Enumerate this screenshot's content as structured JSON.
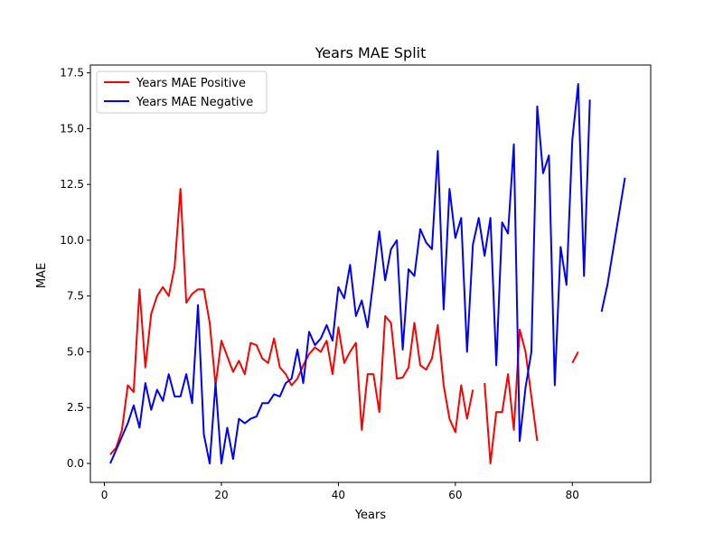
{
  "chart_data": {
    "type": "line",
    "title": "Years MAE Split",
    "xlabel": "Years",
    "ylabel": "MAE",
    "xlim": [
      -2.4,
      93.4
    ],
    "ylim": [
      -0.85,
      17.85
    ],
    "xticks": [
      0,
      20,
      40,
      60,
      80
    ],
    "xtick_labels": [
      "0",
      "20",
      "40",
      "60",
      "80"
    ],
    "yticks": [
      0,
      2.5,
      5,
      7.5,
      10,
      12.5,
      15,
      17.5
    ],
    "ytick_labels": [
      "0.0",
      "2.5",
      "5.0",
      "7.5",
      "10.0",
      "12.5",
      "15.0",
      "17.5"
    ],
    "grid": false,
    "legend_position": "upper left",
    "series": [
      {
        "name": "Years MAE Positive",
        "color": "#ff0000",
        "points": [
          [
            1,
            0.4
          ],
          [
            2,
            0.7
          ],
          [
            3,
            1.5
          ],
          [
            4,
            3.5
          ],
          [
            5,
            3.2
          ],
          [
            6,
            7.8
          ],
          [
            7,
            4.3
          ],
          [
            8,
            6.7
          ],
          [
            9,
            7.5
          ],
          [
            10,
            7.9
          ],
          [
            11,
            7.5
          ],
          [
            12,
            8.8
          ],
          [
            13,
            12.3
          ],
          [
            14,
            7.2
          ],
          [
            15,
            7.6
          ],
          [
            16,
            7.8
          ],
          [
            17,
            7.8
          ],
          [
            18,
            6.3
          ],
          [
            19,
            3.5
          ],
          [
            20,
            5.5
          ],
          [
            21,
            4.8
          ],
          [
            22,
            4.1
          ],
          [
            23,
            4.6
          ],
          [
            24,
            4.0
          ],
          [
            25,
            5.4
          ],
          [
            26,
            5.3
          ],
          [
            27,
            4.7
          ],
          [
            28,
            4.5
          ],
          [
            29,
            5.6
          ],
          [
            30,
            4.3
          ],
          [
            31,
            4.0
          ],
          [
            32,
            3.5
          ],
          [
            33,
            3.8
          ],
          [
            34,
            4.4
          ],
          [
            35,
            4.9
          ],
          [
            36,
            5.2
          ],
          [
            37,
            5.0
          ],
          [
            38,
            5.5
          ],
          [
            39,
            4.0
          ],
          [
            40,
            6.1
          ],
          [
            41,
            4.5
          ],
          [
            42,
            5.0
          ],
          [
            43,
            5.4
          ],
          [
            44,
            1.5
          ],
          [
            45,
            4.0
          ],
          [
            46,
            4.0
          ],
          [
            47,
            2.3
          ],
          [
            48,
            6.6
          ],
          [
            49,
            6.3
          ],
          [
            50,
            3.8
          ],
          [
            51,
            3.85
          ],
          [
            52,
            4.3
          ],
          [
            53,
            6.3
          ],
          [
            54,
            4.4
          ],
          [
            55,
            4.2
          ],
          [
            56,
            4.7
          ],
          [
            57,
            6.2
          ],
          [
            58,
            3.5
          ],
          [
            59,
            2.0
          ],
          [
            60,
            1.4
          ],
          [
            61,
            3.5
          ],
          [
            62,
            2.0
          ],
          [
            63,
            3.3
          ],
          null,
          [
            65,
            3.6
          ],
          [
            66,
            0.0
          ],
          [
            67,
            2.3
          ],
          [
            68,
            2.3
          ],
          [
            69,
            4.0
          ],
          [
            70,
            1.5
          ],
          [
            71,
            6.0
          ],
          [
            72,
            5.0
          ],
          [
            73,
            3.0
          ],
          [
            74,
            1.0
          ],
          null,
          [
            80,
            4.5
          ],
          [
            81,
            5.0
          ]
        ]
      },
      {
        "name": "Years MAE Negative",
        "color": "#0000ff",
        "points": [
          [
            1,
            0.0
          ],
          [
            2,
            0.6
          ],
          [
            3,
            1.2
          ],
          [
            4,
            1.8
          ],
          [
            5,
            2.6
          ],
          [
            6,
            1.6
          ],
          [
            7,
            3.6
          ],
          [
            8,
            2.4
          ],
          [
            9,
            3.3
          ],
          [
            10,
            2.8
          ],
          [
            11,
            4.0
          ],
          [
            12,
            3.0
          ],
          [
            13,
            3.0
          ],
          [
            14,
            4.0
          ],
          [
            15,
            2.7
          ],
          [
            16,
            7.1
          ],
          [
            17,
            1.3
          ],
          [
            18,
            0.0
          ],
          [
            19,
            3.6
          ],
          [
            20,
            0.0
          ],
          [
            21,
            1.6
          ],
          [
            22,
            0.2
          ],
          [
            23,
            2.0
          ],
          [
            24,
            1.8
          ],
          [
            25,
            2.0
          ],
          [
            26,
            2.1
          ],
          [
            27,
            2.7
          ],
          [
            28,
            2.7
          ],
          [
            29,
            3.1
          ],
          [
            30,
            3.0
          ],
          [
            31,
            3.6
          ],
          [
            32,
            3.8
          ],
          [
            33,
            5.1
          ],
          [
            34,
            3.6
          ],
          [
            35,
            5.9
          ],
          [
            36,
            5.3
          ],
          [
            37,
            5.6
          ],
          [
            38,
            6.2
          ],
          [
            39,
            5.5
          ],
          [
            40,
            7.9
          ],
          [
            41,
            7.4
          ],
          [
            42,
            8.9
          ],
          [
            43,
            6.6
          ],
          [
            44,
            7.3
          ],
          [
            45,
            6.1
          ],
          [
            46,
            8.2
          ],
          [
            47,
            10.4
          ],
          [
            48,
            8.2
          ],
          [
            49,
            9.6
          ],
          [
            50,
            10.0
          ],
          [
            51,
            5.1
          ],
          [
            52,
            8.7
          ],
          [
            53,
            8.4
          ],
          [
            54,
            10.5
          ],
          [
            55,
            9.9
          ],
          [
            56,
            9.6
          ],
          [
            57,
            14.0
          ],
          [
            58,
            6.9
          ],
          [
            59,
            12.3
          ],
          [
            60,
            10.1
          ],
          [
            61,
            11.0
          ],
          [
            62,
            5.0
          ],
          [
            63,
            9.8
          ],
          [
            64,
            11.0
          ],
          [
            65,
            9.3
          ],
          [
            66,
            11.0
          ],
          [
            67,
            4.4
          ],
          [
            68,
            10.8
          ],
          [
            69,
            10.3
          ],
          [
            70,
            14.3
          ],
          [
            71,
            1.0
          ],
          [
            72,
            3.4
          ],
          [
            73,
            5.0
          ],
          [
            74,
            16.0
          ],
          [
            75,
            13.0
          ],
          [
            76,
            13.8
          ],
          [
            77,
            3.5
          ],
          [
            78,
            9.7
          ],
          [
            79,
            8.0
          ],
          [
            80,
            14.5
          ],
          [
            81,
            17.0
          ],
          [
            82,
            8.4
          ],
          [
            83,
            16.3
          ],
          null,
          [
            85,
            6.8
          ],
          [
            86,
            8.0
          ],
          [
            87,
            9.6
          ],
          [
            88,
            11.2
          ],
          [
            89,
            12.8
          ]
        ]
      }
    ]
  }
}
